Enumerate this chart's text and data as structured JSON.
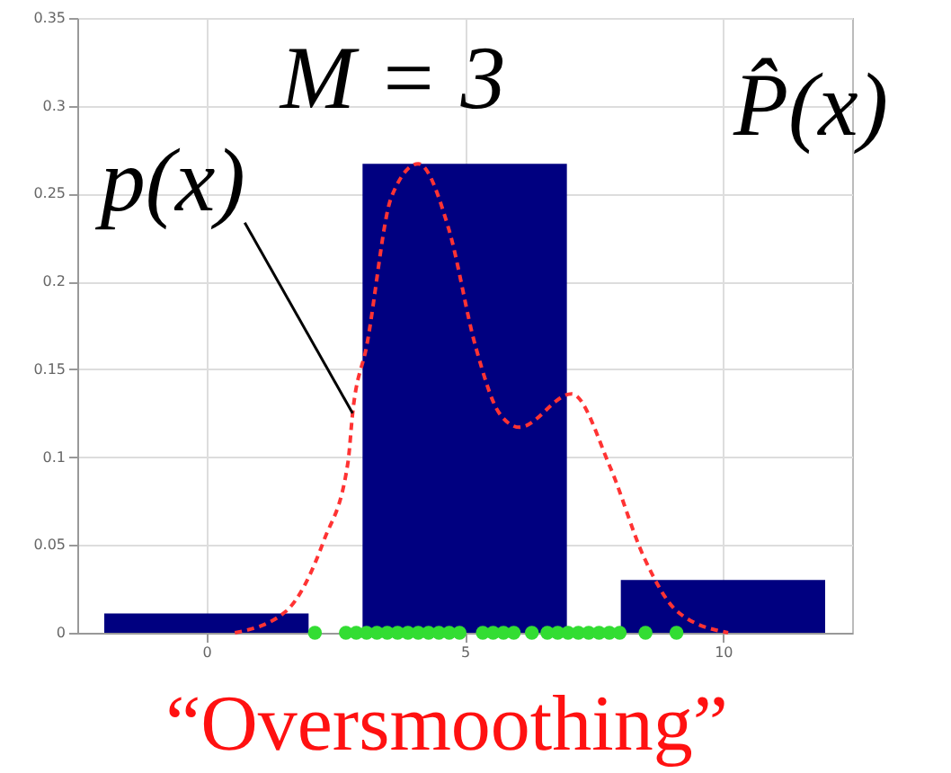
{
  "chart_data": {
    "type": "histogram",
    "bins": [
      -2.5,
      2.5,
      7.5,
      12.5
    ],
    "values": [
      0.011,
      0.267,
      0.03
    ],
    "color": "#000080",
    "series": [
      {
        "type": "line",
        "color": "#ff3333",
        "line_style": "dashed",
        "marker": "none",
        "x": [
          0.55,
          1.53,
          2.28,
          2.74,
          2.83,
          3.1,
          3.58,
          4.1,
          4.69,
          5.21,
          5.67,
          6.06,
          7.07,
          7.82,
          8.47,
          9.12,
          10.1
        ],
        "values": [
          0,
          0.012,
          0.053,
          0.097,
          0.125,
          0.163,
          0.248,
          0.267,
          0.23,
          0.163,
          0.125,
          0.117,
          0.136,
          0.094,
          0.043,
          0.012,
          0
        ]
      },
      {
        "type": "scatter",
        "color": "#33dd33",
        "marker": "circle",
        "x": [
          2.1,
          2.7,
          2.9,
          3.1,
          3.3,
          3.5,
          3.7,
          3.9,
          4.1,
          4.3,
          4.5,
          4.7,
          4.9,
          5.35,
          5.55,
          5.75,
          5.95,
          6.3,
          6.6,
          6.8,
          7.0,
          7.2,
          7.4,
          7.6,
          7.8,
          8.0,
          8.5,
          9.1
        ],
        "values": [
          0,
          0,
          0,
          0,
          0,
          0,
          0,
          0,
          0,
          0,
          0,
          0,
          0,
          0,
          0,
          0,
          0,
          0,
          0,
          0,
          0,
          0,
          0,
          0,
          0,
          0,
          0,
          0
        ]
      }
    ],
    "xlim": [
      -2.5,
      12.5
    ],
    "xticks": [
      0,
      5,
      10
    ],
    "ylim": [
      0,
      0.35
    ],
    "yticks": [
      0,
      0.05,
      0.1,
      0.15,
      0.2,
      0.25,
      0.3,
      0.35
    ],
    "grid": true,
    "annotations": [
      {
        "text": "p(x)",
        "x": 2.83,
        "y": 0.125
      },
      "P̂(x)",
      "M = 3",
      "“Oversmoothing”"
    ]
  }
}
